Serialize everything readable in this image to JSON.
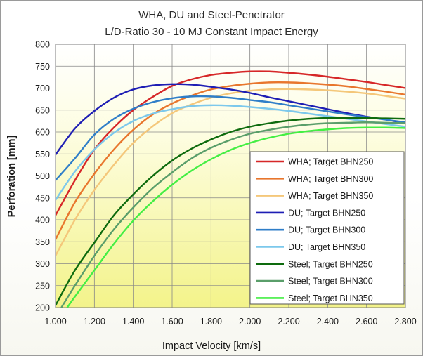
{
  "chart_data": {
    "type": "line",
    "title": [
      "WHA,  DU and  Steel-Penetrator",
      "L/D-Ratio 30  -  10 MJ Constant Impact Energy"
    ],
    "xlabel": "Impact Velocity  [km/s]",
    "ylabel": "Perforation  [mm]",
    "xlim": [
      1.0,
      2.8
    ],
    "ylim": [
      200,
      800
    ],
    "x_ticks": [
      "1.000",
      "1.200",
      "1.400",
      "1.600",
      "1.800",
      "2.000",
      "2.200",
      "2.400",
      "2.600",
      "2.800"
    ],
    "y_ticks": [
      "200",
      "250",
      "300",
      "350",
      "400",
      "450",
      "500",
      "550",
      "600",
      "650",
      "700",
      "750",
      "800"
    ],
    "grid": "both",
    "legend_position": "lower-right",
    "background": "yellow-gradient",
    "series": [
      {
        "name": "WHA; Target BHN250",
        "color": "#d62728",
        "x": [
          1.0,
          1.1,
          1.2,
          1.3,
          1.4,
          1.5,
          1.6,
          1.7,
          1.8,
          1.9,
          2.0,
          2.1,
          2.2,
          2.3,
          2.4,
          2.5,
          2.6,
          2.7,
          2.8
        ],
        "y": [
          410,
          490,
          560,
          610,
          650,
          680,
          705,
          720,
          730,
          735,
          738,
          738,
          735,
          731,
          726,
          720,
          714,
          707,
          700
        ]
      },
      {
        "name": "WHA; Target BHN300",
        "color": "#e8762d",
        "x": [
          1.0,
          1.1,
          1.2,
          1.3,
          1.4,
          1.5,
          1.6,
          1.7,
          1.8,
          1.9,
          2.0,
          2.1,
          2.2,
          2.3,
          2.4,
          2.5,
          2.6,
          2.7,
          2.8
        ],
        "y": [
          355,
          440,
          505,
          560,
          605,
          640,
          665,
          683,
          697,
          705,
          710,
          713,
          713,
          711,
          708,
          704,
          698,
          692,
          685
        ]
      },
      {
        "name": "WHA; Target BHN350",
        "color": "#f4c77a",
        "x": [
          1.0,
          1.1,
          1.2,
          1.3,
          1.4,
          1.5,
          1.6,
          1.7,
          1.8,
          1.9,
          2.0,
          2.1,
          2.2,
          2.3,
          2.4,
          2.5,
          2.6,
          2.7,
          2.8
        ],
        "y": [
          318,
          400,
          468,
          525,
          575,
          613,
          643,
          663,
          678,
          688,
          694,
          697,
          698,
          697,
          695,
          692,
          688,
          682,
          676
        ]
      },
      {
        "name": "DU;  Target BHN250",
        "color": "#1e1eb4",
        "x": [
          1.0,
          1.1,
          1.2,
          1.3,
          1.4,
          1.5,
          1.6,
          1.7,
          1.8,
          1.9,
          2.0,
          2.1,
          2.2,
          2.3,
          2.4,
          2.5,
          2.6,
          2.7,
          2.8
        ],
        "y": [
          548,
          608,
          648,
          678,
          697,
          706,
          709,
          708,
          703,
          697,
          689,
          679,
          670,
          661,
          652,
          643,
          635,
          628,
          620
        ]
      },
      {
        "name": "DU;  Target BHN300",
        "color": "#2f7ec8",
        "x": [
          1.0,
          1.1,
          1.2,
          1.3,
          1.4,
          1.5,
          1.6,
          1.7,
          1.8,
          1.9,
          2.0,
          2.1,
          2.2,
          2.3,
          2.4,
          2.5,
          2.6,
          2.7,
          2.8
        ],
        "y": [
          490,
          540,
          594,
          630,
          653,
          668,
          677,
          681,
          681,
          678,
          673,
          668,
          661,
          654,
          647,
          640,
          634,
          628,
          622
        ]
      },
      {
        "name": "DU;  Target BHN350",
        "color": "#7cc8ec",
        "x": [
          1.0,
          1.1,
          1.2,
          1.3,
          1.4,
          1.5,
          1.6,
          1.7,
          1.8,
          1.9,
          2.0,
          2.1,
          2.2,
          2.3,
          2.4,
          2.5,
          2.6,
          2.7,
          2.8
        ],
        "y": [
          445,
          510,
          560,
          598,
          625,
          642,
          652,
          659,
          661,
          660,
          657,
          653,
          648,
          642,
          636,
          630,
          624,
          618,
          612
        ]
      },
      {
        "name": "Steel; Target BHN250",
        "color": "#0e6b0e",
        "x": [
          1.0,
          1.1,
          1.2,
          1.3,
          1.4,
          1.5,
          1.6,
          1.7,
          1.8,
          1.9,
          2.0,
          2.1,
          2.2,
          2.3,
          2.4,
          2.5,
          2.6,
          2.7,
          2.8
        ],
        "y": [
          205,
          285,
          348,
          410,
          458,
          500,
          535,
          562,
          583,
          600,
          612,
          620,
          626,
          630,
          632,
          632,
          632,
          631,
          630
        ]
      },
      {
        "name": "Steel; Target BHN300",
        "color": "#5a9e6a",
        "x": [
          1.03,
          1.1,
          1.2,
          1.3,
          1.4,
          1.5,
          1.6,
          1.7,
          1.8,
          1.9,
          2.0,
          2.1,
          2.2,
          2.3,
          2.4,
          2.5,
          2.6,
          2.7,
          2.8
        ],
        "y": [
          200,
          250,
          318,
          378,
          428,
          472,
          508,
          540,
          564,
          582,
          596,
          605,
          612,
          617,
          620,
          621,
          622,
          621,
          620
        ]
      },
      {
        "name": "Steel; Target BHN350",
        "color": "#44ee44",
        "x": [
          1.06,
          1.1,
          1.2,
          1.3,
          1.4,
          1.5,
          1.6,
          1.7,
          1.8,
          1.9,
          2.0,
          2.1,
          2.2,
          2.3,
          2.4,
          2.5,
          2.6,
          2.7,
          2.8
        ],
        "y": [
          200,
          225,
          285,
          345,
          398,
          442,
          480,
          512,
          538,
          559,
          575,
          587,
          596,
          602,
          606,
          609,
          610,
          610,
          609
        ]
      }
    ]
  }
}
